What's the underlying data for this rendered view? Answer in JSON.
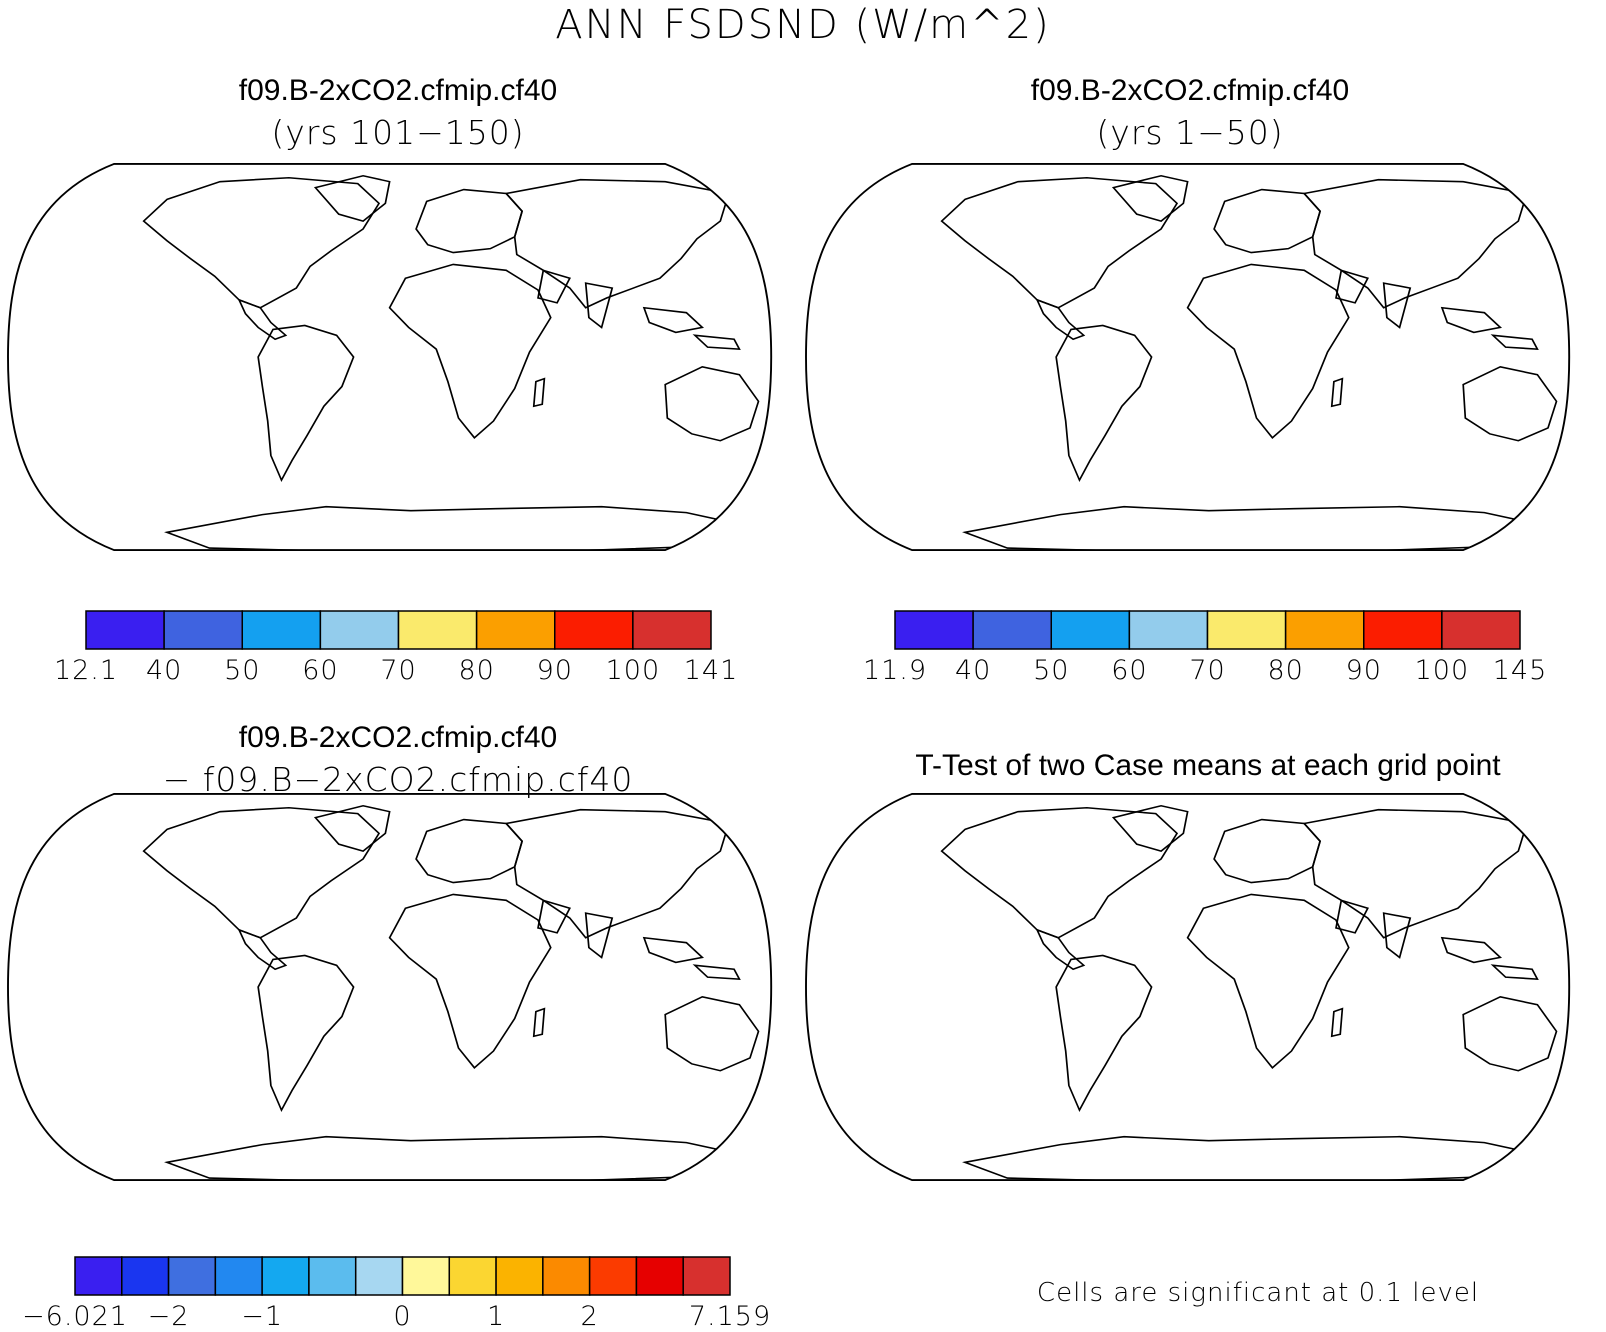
{
  "main_title": "ANN FSDSND (W/m^2)",
  "panels": [
    {
      "id": "top-left",
      "title": "f09.B-2xCO2.cfmip.cf40",
      "subtitle": "(yrs 101−150)",
      "colorbar": {
        "colors": [
          "#3a1ff0",
          "#3f63e0",
          "#14a0f0",
          "#93ccec",
          "#faea6c",
          "#fb9f00",
          "#fb1d00",
          "#d7302e"
        ],
        "labels": [
          "12.1",
          "40",
          "50",
          "60",
          "70",
          "80",
          "90",
          "100",
          "141"
        ]
      }
    },
    {
      "id": "top-right",
      "title": "f09.B-2xCO2.cfmip.cf40",
      "subtitle": "(yrs 1−50)",
      "colorbar": {
        "colors": [
          "#3a1ff0",
          "#3f63e0",
          "#14a0f0",
          "#93ccec",
          "#faea6c",
          "#fb9f00",
          "#fb1d00",
          "#d7302e"
        ],
        "labels": [
          "11.9",
          "40",
          "50",
          "60",
          "70",
          "80",
          "90",
          "100",
          "145"
        ]
      }
    },
    {
      "id": "bottom-left",
      "title": "f09.B-2xCO2.cfmip.cf40",
      "subtitle": "− f09.B−2xCO2.cfmip.cf40",
      "colorbar": {
        "colors": [
          "#3a1ff0",
          "#1a36f0",
          "#3f6fe0",
          "#2288f0",
          "#14a8f0",
          "#5bbcee",
          "#a7d7f1",
          "#fff89a",
          "#fbd631",
          "#fbb300",
          "#fb8a00",
          "#fb3b00",
          "#e60000",
          "#d7302e"
        ],
        "labels": [
          "−6.021",
          "−2",
          "−1",
          "0",
          "1",
          "2",
          "7.159"
        ]
      }
    },
    {
      "id": "bottom-right",
      "title": "T-Test of two Case means at each grid point",
      "footnote": "Cells are significant at 0.1 level"
    }
  ],
  "colors": {
    "land_outline": "#000000",
    "significant": "#ff0000",
    "background": "#ffffff"
  }
}
